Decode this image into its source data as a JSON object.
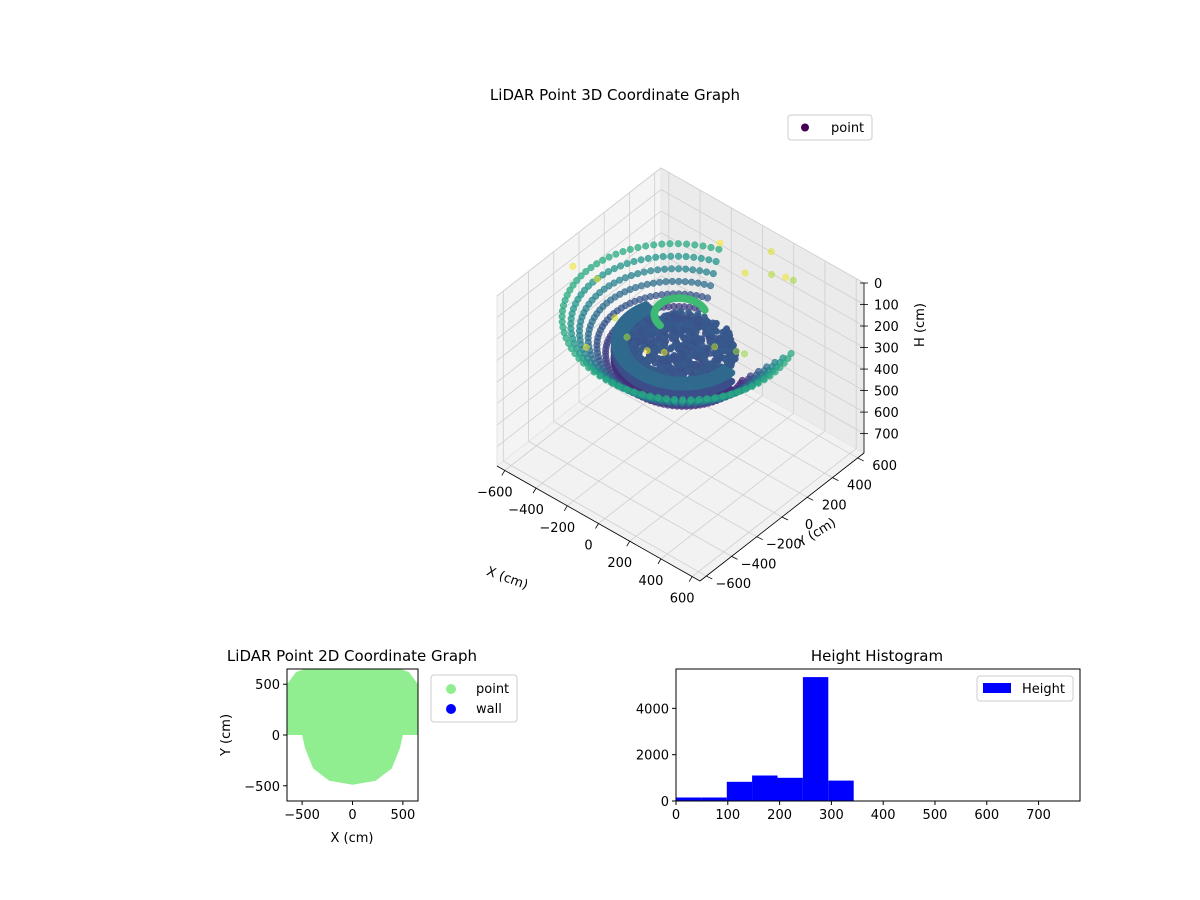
{
  "chart_data": [
    {
      "type": "scatter",
      "title": "LiDAR Point 3D Coordinate Graph",
      "xlabel": "X (cm)",
      "ylabel": "Y (cm)",
      "zlabel": "H (cm)",
      "xlim": [
        -650,
        650
      ],
      "ylim": [
        -650,
        650
      ],
      "zlim": [
        790,
        0
      ],
      "x_ticks": [
        -600,
        -400,
        -200,
        0,
        200,
        400,
        600
      ],
      "y_ticks": [
        -600,
        -400,
        -200,
        0,
        200,
        400,
        600
      ],
      "z_ticks": [
        0,
        100,
        200,
        300,
        400,
        500,
        600,
        700
      ],
      "legend": [
        "point"
      ],
      "legend_position": "upper-right",
      "colormap": "viridis",
      "grid": true,
      "structures": [
        {
          "shape": "ring-cloud",
          "radius_range": [
            330,
            590
          ],
          "height_range": [
            150,
            340
          ],
          "arc_start_deg": 110,
          "arc_end_deg": 380
        },
        {
          "shape": "curved-wall",
          "radius_range": [
            280,
            330
          ],
          "height_range": [
            250,
            330
          ],
          "arc_start_deg": 160,
          "arc_end_deg": 360
        },
        {
          "shape": "floor-disc",
          "radius": 280,
          "height": 280
        },
        {
          "shape": "inner-arc",
          "radius": 130,
          "height": 120,
          "arc_start_deg": 60,
          "arc_end_deg": 260
        },
        {
          "shape": "sparse-ceiling",
          "height_range": [
            0,
            60
          ]
        }
      ]
    },
    {
      "type": "scatter",
      "title": "LiDAR Point 2D Coordinate Graph",
      "xlabel": "X (cm)",
      "ylabel": "Y (cm)",
      "xlim": [
        -650,
        650
      ],
      "ylim": [
        -650,
        650
      ],
      "x_ticks": [
        -500,
        0,
        500
      ],
      "y_ticks": [
        -500,
        0,
        500
      ],
      "legend": [
        "point",
        "wall"
      ],
      "legend_position": "outside-right",
      "series": [
        {
          "name": "point",
          "color": "#90ee90",
          "shape": "outline",
          "outline_xy": [
            [
              -650,
              0
            ],
            [
              -650,
              500
            ],
            [
              -560,
              620
            ],
            [
              -440,
              660
            ],
            [
              440,
              660
            ],
            [
              560,
              620
            ],
            [
              650,
              500
            ],
            [
              650,
              0
            ],
            [
              500,
              0
            ],
            [
              470,
              -130
            ],
            [
              390,
              -330
            ],
            [
              230,
              -450
            ],
            [
              0,
              -490
            ],
            [
              -230,
              -450
            ],
            [
              -390,
              -330
            ],
            [
              -470,
              -130
            ],
            [
              -500,
              0
            ]
          ]
        },
        {
          "name": "wall",
          "color": "#0000ff",
          "points": []
        }
      ]
    },
    {
      "type": "bar",
      "title": "Height Histogram",
      "legend": [
        "Height"
      ],
      "legend_position": "upper-right",
      "color": "#0000ff",
      "xlim": [
        0,
        780
      ],
      "ylim": [
        0,
        5700
      ],
      "x_ticks": [
        0,
        100,
        200,
        300,
        400,
        500,
        600,
        700
      ],
      "y_ticks": [
        0,
        2000,
        4000
      ],
      "bin_edges": [
        0,
        49,
        98,
        147,
        196,
        245,
        294,
        343
      ],
      "values": [
        150,
        150,
        830,
        1100,
        1000,
        5350,
        880
      ]
    }
  ]
}
